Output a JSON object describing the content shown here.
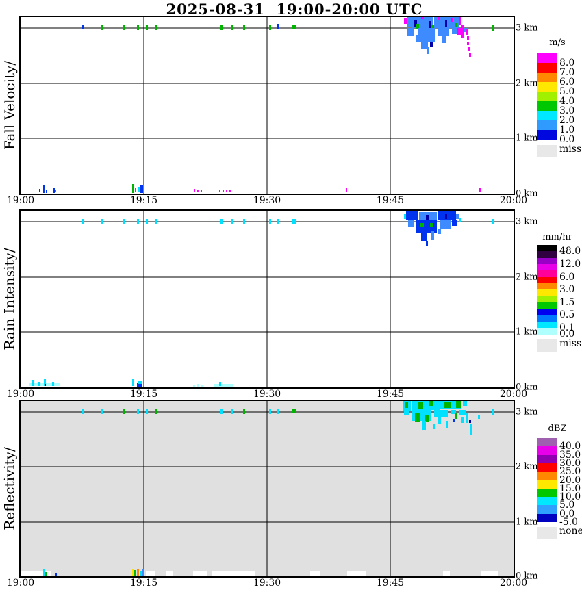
{
  "title": "2025-08-31  19:00-20:00 UTC",
  "x_ticks": [
    "19:00",
    "19:15",
    "19:30",
    "19:45",
    "20:00"
  ],
  "km_labels": [
    "3 km",
    "2 km",
    "1 km",
    "0 km"
  ],
  "palette": {
    "B": "#3d8bff",
    "b": "#0033ee",
    "n": "#0000aa",
    "m": "#ff00ff",
    "g": "#00b400",
    "c": "#00e0ff",
    "C": "#aaffff",
    "w": "#ffffff",
    "y": "#ffe000",
    "o": "#ff8800"
  },
  "chart_data": [
    {
      "type": "heatmap",
      "id": "fall_velocity",
      "side_label": "Fall Velocity/",
      "unit": "m/s",
      "plot_bg": "#ffffff",
      "x_axis": {
        "ticks": [
          "19:00",
          "19:15",
          "19:30",
          "19:45",
          "20:00"
        ],
        "range_min": "19:00 UTC",
        "range_max": "20:00 UTC"
      },
      "y_axis": {
        "ticks": [
          "3 km",
          "2 km",
          "1 km",
          "0 km"
        ],
        "range_km": [
          0,
          3.2
        ]
      },
      "legend": {
        "title": "m/s",
        "band_colors": [
          "#ff00ff",
          "#ff0000",
          "#ff8800",
          "#ffe800",
          "#a0f000",
          "#00c800",
          "#00e8ff",
          "#2f9bff",
          "#0008e0"
        ],
        "labels": [
          "8.0",
          "7.0",
          "6.0",
          "5.0",
          "4.0",
          "3.0",
          "2.0",
          "1.0",
          "0.0"
        ],
        "boundaries": [
          1,
          2,
          3,
          4,
          5,
          6,
          7,
          8,
          9
        ],
        "missing_label": "miss",
        "missing_color": "#e8e8e8"
      },
      "marks": [
        [
          90,
          11,
          3,
          7,
          "b"
        ],
        [
          118,
          12,
          3,
          7,
          "g"
        ],
        [
          150,
          12,
          3,
          7,
          "g"
        ],
        [
          170,
          12,
          3,
          7,
          "g"
        ],
        [
          183,
          12,
          3,
          7,
          "g"
        ],
        [
          197,
          12,
          3,
          7,
          "g"
        ],
        [
          292,
          12,
          3,
          7,
          "g"
        ],
        [
          308,
          12,
          3,
          7,
          "g"
        ],
        [
          325,
          12,
          3,
          7,
          "g"
        ],
        [
          363,
          12,
          3,
          7,
          "g"
        ],
        [
          375,
          10,
          3,
          7,
          "b"
        ],
        [
          396,
          11,
          6,
          7,
          "g"
        ],
        [
          688,
          12,
          3,
          8,
          "g"
        ],
        [
          560,
          2,
          4,
          8,
          "m"
        ],
        [
          564,
          0,
          8,
          14,
          "B"
        ],
        [
          572,
          0,
          30,
          16,
          "B"
        ],
        [
          575,
          4,
          4,
          10,
          "n"
        ],
        [
          578,
          10,
          4,
          8,
          "g"
        ],
        [
          585,
          0,
          4,
          3,
          "m"
        ],
        [
          596,
          6,
          3,
          14,
          "n"
        ],
        [
          600,
          12,
          4,
          8,
          "g"
        ],
        [
          604,
          0,
          22,
          16,
          "B"
        ],
        [
          610,
          0,
          3,
          4,
          "m"
        ],
        [
          620,
          4,
          3,
          10,
          "n"
        ],
        [
          626,
          0,
          14,
          16,
          "B"
        ],
        [
          628,
          2,
          3,
          5,
          "m"
        ],
        [
          634,
          8,
          3,
          6,
          "g"
        ],
        [
          640,
          0,
          4,
          12,
          "m"
        ],
        [
          565,
          16,
          10,
          12,
          "B"
        ],
        [
          577,
          26,
          3,
          10,
          "B"
        ],
        [
          580,
          16,
          26,
          20,
          "B"
        ],
        [
          585,
          36,
          10,
          10,
          "B"
        ],
        [
          594,
          44,
          3,
          10,
          "B"
        ],
        [
          598,
          36,
          4,
          8,
          "n"
        ],
        [
          610,
          16,
          16,
          12,
          "B"
        ],
        [
          616,
          28,
          6,
          10,
          "B"
        ],
        [
          630,
          16,
          10,
          8,
          "B"
        ],
        [
          648,
          16,
          4,
          6,
          "B"
        ],
        [
          638,
          16,
          5,
          10,
          "m"
        ],
        [
          644,
          12,
          4,
          18,
          "m"
        ],
        [
          650,
          18,
          3,
          8,
          "m"
        ],
        [
          652,
          28,
          3,
          5,
          "m"
        ],
        [
          652,
          36,
          3,
          5,
          "m"
        ],
        [
          653,
          44,
          3,
          6,
          "m"
        ],
        [
          655,
          52,
          3,
          6,
          "m"
        ],
        [
          27,
          251,
          2,
          4,
          "b"
        ],
        [
          33,
          245,
          3,
          12,
          "b"
        ],
        [
          37,
          252,
          2,
          5,
          "b"
        ],
        [
          47,
          249,
          3,
          8,
          "b"
        ],
        [
          50,
          253,
          2,
          3,
          "m"
        ],
        [
          163,
          244,
          3,
          13,
          "g"
        ],
        [
          167,
          250,
          2,
          6,
          "m"
        ],
        [
          171,
          248,
          4,
          8,
          "c"
        ],
        [
          175,
          245,
          4,
          12,
          "b"
        ],
        [
          253,
          251,
          2,
          4,
          "m"
        ],
        [
          258,
          253,
          2,
          3,
          "m"
        ],
        [
          263,
          252,
          2,
          3,
          "m"
        ],
        [
          290,
          252,
          2,
          3,
          "m"
        ],
        [
          295,
          253,
          2,
          3,
          "m"
        ],
        [
          300,
          252,
          2,
          3,
          "m"
        ],
        [
          305,
          253,
          2,
          3,
          "m"
        ],
        [
          475,
          250,
          2,
          5,
          "m"
        ],
        [
          670,
          249,
          2,
          6,
          "m"
        ]
      ]
    },
    {
      "type": "heatmap",
      "id": "rain_intensity",
      "side_label": "Rain Intensity/",
      "unit": "mm/hr",
      "plot_bg": "#ffffff",
      "x_axis": {
        "ticks": [
          "19:00",
          "19:15",
          "19:30",
          "19:45",
          "20:00"
        ],
        "range_min": "19:00 UTC",
        "range_max": "20:00 UTC"
      },
      "y_axis": {
        "ticks": [
          "3 km",
          "2 km",
          "1 km",
          "0 km"
        ],
        "range_km": [
          0,
          3.2
        ]
      },
      "legend": {
        "title": "mm/hr",
        "band_colors": [
          "#000000",
          "#300040",
          "#9800c8",
          "#e800e8",
          "#ff0098",
          "#ff0000",
          "#ff8800",
          "#ffe800",
          "#a0f000",
          "#00c800",
          "#0000f0",
          "#0078ff",
          "#00e8ff",
          "#b0ffff"
        ],
        "labels": [
          "48.0",
          "12.0",
          "6.0",
          "3.0",
          "1.5",
          "0.5",
          "0.1",
          "0.0"
        ],
        "boundaries": [
          1,
          3,
          5,
          7,
          9,
          11,
          13,
          14
        ],
        "missing_label": "miss",
        "missing_color": "#e8e8e8"
      },
      "marks": [
        [
          90,
          12,
          3,
          7,
          "c"
        ],
        [
          118,
          12,
          3,
          7,
          "c"
        ],
        [
          150,
          12,
          3,
          7,
          "c"
        ],
        [
          170,
          12,
          3,
          7,
          "c"
        ],
        [
          183,
          12,
          3,
          7,
          "c"
        ],
        [
          197,
          12,
          3,
          7,
          "c"
        ],
        [
          292,
          12,
          3,
          7,
          "c"
        ],
        [
          308,
          12,
          3,
          7,
          "c"
        ],
        [
          325,
          12,
          3,
          7,
          "c"
        ],
        [
          363,
          12,
          3,
          7,
          "c"
        ],
        [
          375,
          12,
          3,
          7,
          "c"
        ],
        [
          396,
          12,
          6,
          7,
          "c"
        ],
        [
          688,
          12,
          3,
          8,
          "c"
        ],
        [
          560,
          4,
          3,
          8,
          "c"
        ],
        [
          563,
          0,
          18,
          14,
          "b"
        ],
        [
          582,
          2,
          26,
          12,
          "B"
        ],
        [
          592,
          6,
          4,
          10,
          "n"
        ],
        [
          610,
          0,
          26,
          14,
          "b"
        ],
        [
          620,
          4,
          3,
          8,
          "n"
        ],
        [
          636,
          4,
          4,
          8,
          "B"
        ],
        [
          566,
          14,
          8,
          10,
          "B"
        ],
        [
          578,
          14,
          30,
          18,
          "b"
        ],
        [
          584,
          18,
          5,
          6,
          "g"
        ],
        [
          598,
          18,
          5,
          6,
          "g"
        ],
        [
          585,
          32,
          8,
          12,
          "b"
        ],
        [
          600,
          30,
          4,
          12,
          "B"
        ],
        [
          612,
          14,
          16,
          12,
          "B"
        ],
        [
          630,
          14,
          8,
          8,
          "b"
        ],
        [
          640,
          10,
          3,
          6,
          "c"
        ],
        [
          610,
          26,
          4,
          8,
          "B"
        ],
        [
          592,
          44,
          3,
          8,
          "b"
        ],
        [
          13,
          252,
          45,
          4,
          "C"
        ],
        [
          17,
          248,
          3,
          8,
          "c"
        ],
        [
          26,
          250,
          3,
          6,
          "c"
        ],
        [
          34,
          246,
          3,
          10,
          "c"
        ],
        [
          35,
          253,
          2,
          3,
          "n"
        ],
        [
          46,
          250,
          3,
          6,
          "c"
        ],
        [
          163,
          246,
          3,
          10,
          "c"
        ],
        [
          170,
          252,
          8,
          5,
          "b"
        ],
        [
          172,
          249,
          5,
          4,
          "c"
        ],
        [
          252,
          254,
          3,
          3,
          "C"
        ],
        [
          258,
          253,
          3,
          4,
          "C"
        ],
        [
          264,
          254,
          3,
          3,
          "C"
        ],
        [
          282,
          253,
          28,
          4,
          "C"
        ],
        [
          290,
          250,
          3,
          6,
          "c"
        ]
      ]
    },
    {
      "type": "heatmap",
      "id": "reflectivity",
      "side_label": "Reflectivity/",
      "unit": "dBZ",
      "plot_bg": "#e0e0e0",
      "x_axis": {
        "ticks": [
          "19:00",
          "19:15",
          "19:30",
          "19:45",
          "20:00"
        ],
        "range_min": "19:00 UTC",
        "range_max": "20:00 UTC"
      },
      "y_axis": {
        "ticks": [
          "3 km",
          "2 km",
          "1 km",
          "0 km"
        ],
        "range_km": [
          0,
          3.2
        ]
      },
      "legend": {
        "title": "dBZ",
        "band_colors": [
          "#a060b0",
          "#e800e8",
          "#9000b0",
          "#ff0000",
          "#ff8800",
          "#ffe800",
          "#00c800",
          "#00e8ff",
          "#30a0ff",
          "#0000c0"
        ],
        "labels": [
          "40.0",
          "35.0",
          "30.0",
          "25.0",
          "20.0",
          "15.0",
          "10.0",
          "5.0",
          "0.0",
          "-5.0"
        ],
        "boundaries": [
          1,
          2,
          3,
          4,
          5,
          6,
          7,
          8,
          9,
          10
        ],
        "missing_label": "none",
        "missing_color": "#e8e8e8"
      },
      "marks": [
        [
          90,
          12,
          3,
          7,
          "c"
        ],
        [
          118,
          12,
          3,
          7,
          "c"
        ],
        [
          150,
          12,
          3,
          7,
          "g"
        ],
        [
          170,
          12,
          3,
          7,
          "c"
        ],
        [
          183,
          12,
          3,
          7,
          "c"
        ],
        [
          197,
          12,
          3,
          7,
          "g"
        ],
        [
          292,
          12,
          3,
          7,
          "c"
        ],
        [
          308,
          12,
          3,
          7,
          "c"
        ],
        [
          325,
          12,
          3,
          7,
          "g"
        ],
        [
          363,
          12,
          3,
          7,
          "c"
        ],
        [
          375,
          12,
          3,
          7,
          "c"
        ],
        [
          396,
          11,
          6,
          7,
          "g"
        ],
        [
          688,
          12,
          3,
          8,
          "c"
        ],
        [
          558,
          0,
          12,
          14,
          "c"
        ],
        [
          562,
          2,
          4,
          8,
          "g"
        ],
        [
          572,
          0,
          40,
          13,
          "c"
        ],
        [
          580,
          2,
          8,
          9,
          "g"
        ],
        [
          596,
          0,
          6,
          8,
          "g"
        ],
        [
          612,
          0,
          32,
          12,
          "c"
        ],
        [
          618,
          2,
          10,
          8,
          "g"
        ],
        [
          636,
          0,
          8,
          10,
          "g"
        ],
        [
          646,
          0,
          6,
          8,
          "c"
        ],
        [
          560,
          13,
          8,
          8,
          "c"
        ],
        [
          572,
          13,
          28,
          16,
          "c"
        ],
        [
          576,
          17,
          8,
          13,
          "g"
        ],
        [
          590,
          21,
          6,
          10,
          "g"
        ],
        [
          586,
          29,
          6,
          13,
          "c"
        ],
        [
          604,
          13,
          20,
          10,
          "c"
        ],
        [
          610,
          23,
          4,
          10,
          "c"
        ],
        [
          628,
          13,
          8,
          6,
          "c"
        ],
        [
          634,
          17,
          4,
          10,
          "g"
        ],
        [
          640,
          13,
          10,
          8,
          "c"
        ],
        [
          602,
          33,
          3,
          8,
          "c"
        ],
        [
          622,
          29,
          3,
          10,
          "c"
        ],
        [
          632,
          26,
          3,
          5,
          "b"
        ],
        [
          643,
          24,
          4,
          8,
          "c"
        ],
        [
          650,
          18,
          4,
          14,
          "c"
        ],
        [
          655,
          28,
          3,
          4,
          "n"
        ],
        [
          656,
          34,
          3,
          16,
          "c"
        ],
        [
          668,
          20,
          3,
          6,
          "c"
        ],
        [
          0,
          248,
          45,
          7,
          "w"
        ],
        [
          183,
          248,
          14,
          7,
          "w"
        ],
        [
          212,
          248,
          11,
          7,
          "w"
        ],
        [
          252,
          248,
          20,
          7,
          "w"
        ],
        [
          280,
          248,
          62,
          7,
          "w"
        ],
        [
          423,
          248,
          15,
          7,
          "w"
        ],
        [
          477,
          248,
          28,
          7,
          "w"
        ],
        [
          617,
          248,
          10,
          7,
          "w"
        ],
        [
          672,
          248,
          26,
          7,
          "w"
        ],
        [
          33,
          245,
          3,
          10,
          "c"
        ],
        [
          36,
          250,
          3,
          5,
          "g"
        ],
        [
          50,
          252,
          3,
          3,
          "b"
        ],
        [
          163,
          245,
          3,
          10,
          "y"
        ],
        [
          166,
          247,
          3,
          8,
          "g"
        ],
        [
          170,
          246,
          3,
          9,
          "o"
        ],
        [
          174,
          248,
          4,
          7,
          "c"
        ],
        [
          178,
          246,
          3,
          9,
          "B"
        ]
      ]
    }
  ]
}
